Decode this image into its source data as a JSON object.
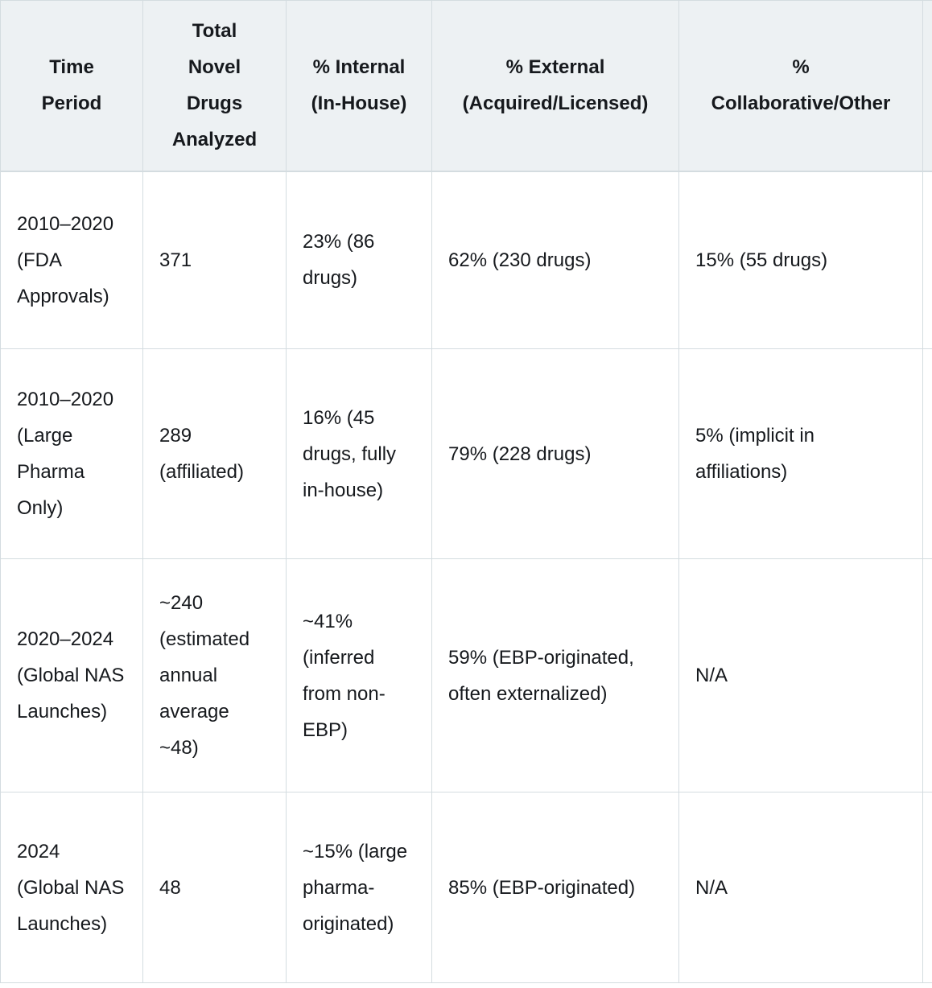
{
  "colors": {
    "header_background": "#edf1f3",
    "body_background": "#ffffff",
    "border": "#d4dce0",
    "text": "#16191d"
  },
  "table": {
    "columns": [
      "Time Period",
      "Total Novel Drugs Analyzed",
      "% Internal (In-House)",
      "% External (Acquired/Licensed)",
      "% Collaborative/Other"
    ],
    "rows": [
      [
        "2010–2020 (FDA Approvals)",
        "371",
        "23% (86 drugs)",
        "62% (230 drugs)",
        "15% (55 drugs)"
      ],
      [
        "2010–2020 (Large Pharma Only)",
        "289 (affiliated)",
        "16% (45 drugs, fully in-house)",
        "79% (228 drugs)",
        "5% (implicit in affiliations)"
      ],
      [
        "2020–2024 (Global NAS Launches)",
        "~240 (estimated annual average ~48)",
        "~41% (inferred from non-EBP)",
        "59% (EBP-originated, often externalized)",
        "N/A"
      ],
      [
        "2024 (Global NAS Launches)",
        "48",
        "~15% (large pharma-originated)",
        "85% (EBP-originated)",
        "N/A"
      ]
    ]
  },
  "chart_data": {
    "type": "table",
    "title": "",
    "columns": [
      "Time Period",
      "Total Novel Drugs Analyzed",
      "% Internal (In-House)",
      "% External (Acquired/Licensed)",
      "% Collaborative/Other"
    ],
    "rows": [
      [
        "2010–2020 (FDA Approvals)",
        "371",
        "23% (86 drugs)",
        "62% (230 drugs)",
        "15% (55 drugs)"
      ],
      [
        "2010–2020 (Large Pharma Only)",
        "289 (affiliated)",
        "16% (45 drugs, fully in-house)",
        "79% (228 drugs)",
        "5% (implicit in affiliations)"
      ],
      [
        "2020–2024 (Global NAS Launches)",
        "~240 (estimated annual average ~48)",
        "~41% (inferred from non-EBP)",
        "59% (EBP-originated, often externalized)",
        "N/A"
      ],
      [
        "2024 (Global NAS Launches)",
        "48",
        "~15% (large pharma-originated)",
        "85% (EBP-originated)",
        "N/A"
      ]
    ],
    "notes": {
      "internal_pct_numeric": [
        23,
        16,
        41,
        15
      ],
      "external_pct_numeric": [
        62,
        79,
        59,
        85
      ],
      "collaborative_pct_numeric": [
        15,
        5,
        null,
        null
      ],
      "total_drugs_numeric": [
        371,
        289,
        240,
        48
      ]
    }
  }
}
